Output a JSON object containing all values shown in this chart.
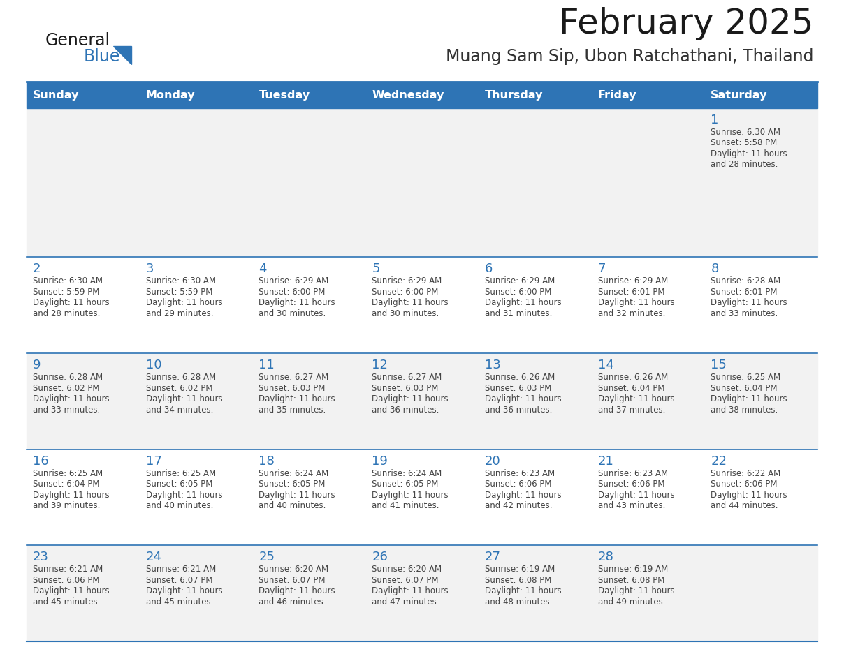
{
  "title": "February 2025",
  "subtitle": "Muang Sam Sip, Ubon Ratchathani, Thailand",
  "days_of_week": [
    "Sunday",
    "Monday",
    "Tuesday",
    "Wednesday",
    "Thursday",
    "Friday",
    "Saturday"
  ],
  "header_bg": "#2E74B5",
  "header_text": "#FFFFFF",
  "row_bg": [
    "#F2F2F2",
    "#FFFFFF",
    "#F2F2F2",
    "#FFFFFF",
    "#F2F2F2"
  ],
  "day_num_color": "#2E74B5",
  "cell_text_color": "#444444",
  "border_color": "#2E74B5",
  "logo_general_color": "#1a1a1a",
  "logo_blue_color": "#2E74B5",
  "calendar": [
    [
      null,
      null,
      null,
      null,
      null,
      null,
      {
        "day": 1,
        "sunrise": "6:30 AM",
        "sunset": "5:58 PM",
        "daylight": "11 hours and 28 minutes."
      }
    ],
    [
      {
        "day": 2,
        "sunrise": "6:30 AM",
        "sunset": "5:59 PM",
        "daylight": "11 hours and 28 minutes."
      },
      {
        "day": 3,
        "sunrise": "6:30 AM",
        "sunset": "5:59 PM",
        "daylight": "11 hours and 29 minutes."
      },
      {
        "day": 4,
        "sunrise": "6:29 AM",
        "sunset": "6:00 PM",
        "daylight": "11 hours and 30 minutes."
      },
      {
        "day": 5,
        "sunrise": "6:29 AM",
        "sunset": "6:00 PM",
        "daylight": "11 hours and 30 minutes."
      },
      {
        "day": 6,
        "sunrise": "6:29 AM",
        "sunset": "6:00 PM",
        "daylight": "11 hours and 31 minutes."
      },
      {
        "day": 7,
        "sunrise": "6:29 AM",
        "sunset": "6:01 PM",
        "daylight": "11 hours and 32 minutes."
      },
      {
        "day": 8,
        "sunrise": "6:28 AM",
        "sunset": "6:01 PM",
        "daylight": "11 hours and 33 minutes."
      }
    ],
    [
      {
        "day": 9,
        "sunrise": "6:28 AM",
        "sunset": "6:02 PM",
        "daylight": "11 hours and 33 minutes."
      },
      {
        "day": 10,
        "sunrise": "6:28 AM",
        "sunset": "6:02 PM",
        "daylight": "11 hours and 34 minutes."
      },
      {
        "day": 11,
        "sunrise": "6:27 AM",
        "sunset": "6:03 PM",
        "daylight": "11 hours and 35 minutes."
      },
      {
        "day": 12,
        "sunrise": "6:27 AM",
        "sunset": "6:03 PM",
        "daylight": "11 hours and 36 minutes."
      },
      {
        "day": 13,
        "sunrise": "6:26 AM",
        "sunset": "6:03 PM",
        "daylight": "11 hours and 36 minutes."
      },
      {
        "day": 14,
        "sunrise": "6:26 AM",
        "sunset": "6:04 PM",
        "daylight": "11 hours and 37 minutes."
      },
      {
        "day": 15,
        "sunrise": "6:25 AM",
        "sunset": "6:04 PM",
        "daylight": "11 hours and 38 minutes."
      }
    ],
    [
      {
        "day": 16,
        "sunrise": "6:25 AM",
        "sunset": "6:04 PM",
        "daylight": "11 hours and 39 minutes."
      },
      {
        "day": 17,
        "sunrise": "6:25 AM",
        "sunset": "6:05 PM",
        "daylight": "11 hours and 40 minutes."
      },
      {
        "day": 18,
        "sunrise": "6:24 AM",
        "sunset": "6:05 PM",
        "daylight": "11 hours and 40 minutes."
      },
      {
        "day": 19,
        "sunrise": "6:24 AM",
        "sunset": "6:05 PM",
        "daylight": "11 hours and 41 minutes."
      },
      {
        "day": 20,
        "sunrise": "6:23 AM",
        "sunset": "6:06 PM",
        "daylight": "11 hours and 42 minutes."
      },
      {
        "day": 21,
        "sunrise": "6:23 AM",
        "sunset": "6:06 PM",
        "daylight": "11 hours and 43 minutes."
      },
      {
        "day": 22,
        "sunrise": "6:22 AM",
        "sunset": "6:06 PM",
        "daylight": "11 hours and 44 minutes."
      }
    ],
    [
      {
        "day": 23,
        "sunrise": "6:21 AM",
        "sunset": "6:06 PM",
        "daylight": "11 hours and 45 minutes."
      },
      {
        "day": 24,
        "sunrise": "6:21 AM",
        "sunset": "6:07 PM",
        "daylight": "11 hours and 45 minutes."
      },
      {
        "day": 25,
        "sunrise": "6:20 AM",
        "sunset": "6:07 PM",
        "daylight": "11 hours and 46 minutes."
      },
      {
        "day": 26,
        "sunrise": "6:20 AM",
        "sunset": "6:07 PM",
        "daylight": "11 hours and 47 minutes."
      },
      {
        "day": 27,
        "sunrise": "6:19 AM",
        "sunset": "6:08 PM",
        "daylight": "11 hours and 48 minutes."
      },
      {
        "day": 28,
        "sunrise": "6:19 AM",
        "sunset": "6:08 PM",
        "daylight": "11 hours and 49 minutes."
      },
      null
    ]
  ]
}
